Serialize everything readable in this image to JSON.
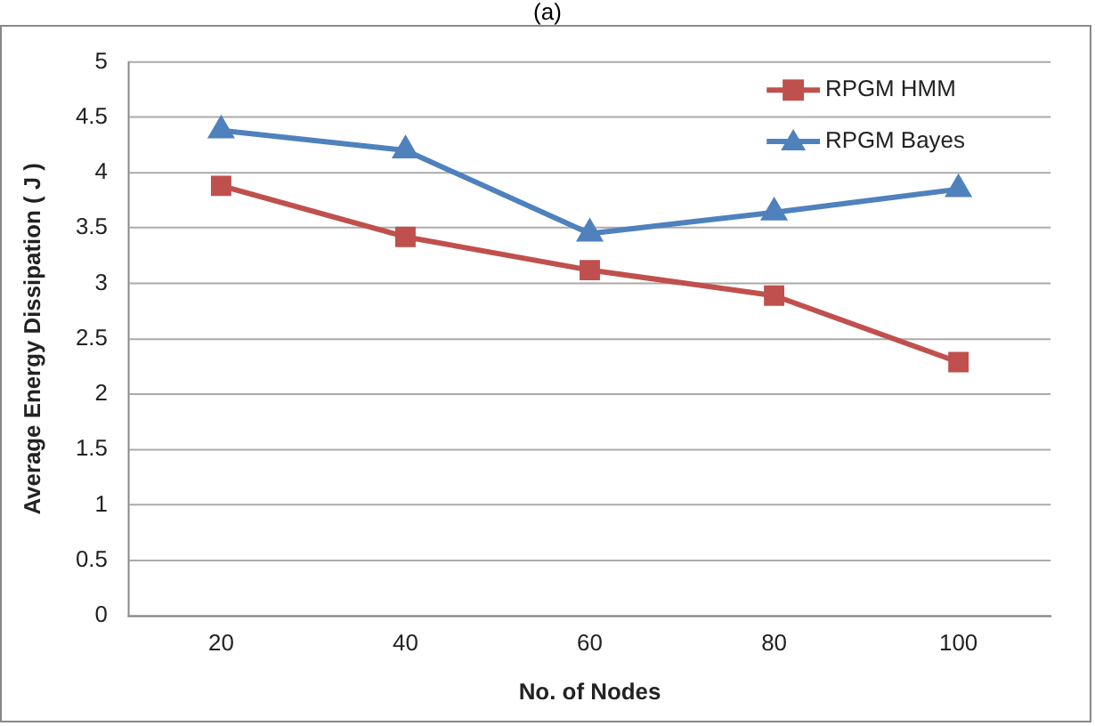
{
  "chart_data": {
    "type": "line",
    "title": "(a)",
    "xlabel": "No. of Nodes",
    "ylabel": "Average Energy Dissipation ( J )",
    "categories": [
      "20",
      "40",
      "60",
      "80",
      "100"
    ],
    "series": [
      {
        "name": "RPGM HMM",
        "color": "#c0504d",
        "marker": "square",
        "values": [
          3.88,
          3.42,
          3.12,
          2.89,
          2.29
        ]
      },
      {
        "name": "RPGM Bayes",
        "color": "#4f81bd",
        "marker": "triangle",
        "values": [
          4.38,
          4.2,
          3.45,
          3.64,
          3.85
        ]
      }
    ],
    "ylim": [
      0,
      5
    ],
    "yticks": [
      0,
      0.5,
      1,
      1.5,
      2,
      2.5,
      3,
      3.5,
      4,
      4.5,
      5
    ],
    "grid": "y",
    "legend": "top right"
  }
}
